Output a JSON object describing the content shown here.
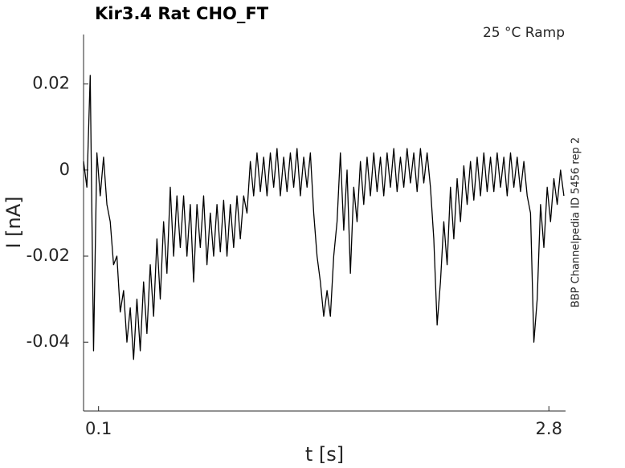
{
  "chart_data": {
    "type": "line",
    "title": "Kir3.4  Rat  CHO_FT",
    "annotation": "25 °C  Ramp",
    "side_note": "BBP Channelpedia ID 5456 rep 2",
    "xlabel": "t [s]",
    "ylabel": "I [nA]",
    "xlim": [
      0.01,
      2.9
    ],
    "ylim": [
      -0.056,
      0.0315
    ],
    "xticks": [
      0.1,
      2.8
    ],
    "yticks": [
      0.02,
      0,
      -0.02,
      -0.04
    ],
    "grid": false,
    "series": [
      {
        "color": "#000000",
        "x": [
          0.01,
          0.03,
          0.05,
          0.07,
          0.09,
          0.11,
          0.13,
          0.15,
          0.17,
          0.19,
          0.21,
          0.23,
          0.25,
          0.27,
          0.29,
          0.31,
          0.33,
          0.35,
          0.37,
          0.39,
          0.41,
          0.43,
          0.45,
          0.47,
          0.49,
          0.51,
          0.53,
          0.55,
          0.57,
          0.59,
          0.61,
          0.63,
          0.65,
          0.67,
          0.69,
          0.71,
          0.73,
          0.75,
          0.77,
          0.79,
          0.81,
          0.83,
          0.85,
          0.87,
          0.89,
          0.91,
          0.93,
          0.95,
          0.97,
          0.99,
          1.01,
          1.03,
          1.05,
          1.07,
          1.09,
          1.11,
          1.13,
          1.15,
          1.17,
          1.19,
          1.21,
          1.23,
          1.25,
          1.27,
          1.29,
          1.31,
          1.33,
          1.35,
          1.37,
          1.39,
          1.41,
          1.43,
          1.45,
          1.47,
          1.49,
          1.51,
          1.53,
          1.55,
          1.57,
          1.59,
          1.61,
          1.63,
          1.65,
          1.67,
          1.69,
          1.71,
          1.73,
          1.75,
          1.77,
          1.79,
          1.81,
          1.83,
          1.85,
          1.87,
          1.89,
          1.91,
          1.93,
          1.95,
          1.97,
          1.99,
          2.01,
          2.03,
          2.05,
          2.07,
          2.09,
          2.11,
          2.13,
          2.15,
          2.17,
          2.19,
          2.21,
          2.23,
          2.25,
          2.27,
          2.29,
          2.31,
          2.33,
          2.35,
          2.37,
          2.39,
          2.41,
          2.43,
          2.45,
          2.47,
          2.49,
          2.51,
          2.53,
          2.55,
          2.57,
          2.59,
          2.61,
          2.63,
          2.65,
          2.67,
          2.69,
          2.71,
          2.73,
          2.75,
          2.77,
          2.79,
          2.81,
          2.83,
          2.85,
          2.87,
          2.89
        ],
        "values": [
          0.002,
          -0.004,
          0.022,
          -0.042,
          0.004,
          -0.006,
          0.003,
          -0.008,
          -0.012,
          -0.022,
          -0.02,
          -0.033,
          -0.028,
          -0.04,
          -0.032,
          -0.044,
          -0.03,
          -0.042,
          -0.026,
          -0.038,
          -0.022,
          -0.034,
          -0.016,
          -0.03,
          -0.012,
          -0.024,
          -0.004,
          -0.02,
          -0.006,
          -0.018,
          -0.006,
          -0.02,
          -0.008,
          -0.026,
          -0.008,
          -0.018,
          -0.006,
          -0.022,
          -0.01,
          -0.02,
          -0.008,
          -0.019,
          -0.007,
          -0.02,
          -0.008,
          -0.018,
          -0.006,
          -0.016,
          -0.006,
          -0.01,
          0.002,
          -0.006,
          0.004,
          -0.005,
          0.003,
          -0.006,
          0.004,
          -0.004,
          0.005,
          -0.006,
          0.003,
          -0.005,
          0.004,
          -0.004,
          0.005,
          -0.006,
          0.003,
          -0.004,
          0.004,
          -0.01,
          -0.02,
          -0.026,
          -0.034,
          -0.028,
          -0.034,
          -0.02,
          -0.012,
          0.004,
          -0.014,
          0.0,
          -0.024,
          -0.004,
          -0.012,
          0.002,
          -0.008,
          0.003,
          -0.006,
          0.004,
          -0.005,
          0.003,
          -0.006,
          0.004,
          -0.004,
          0.005,
          -0.005,
          0.003,
          -0.004,
          0.005,
          -0.003,
          0.004,
          -0.005,
          0.005,
          -0.003,
          0.004,
          -0.004,
          -0.016,
          -0.036,
          -0.026,
          -0.012,
          -0.022,
          -0.004,
          -0.016,
          -0.002,
          -0.012,
          0.001,
          -0.008,
          0.002,
          -0.007,
          0.003,
          -0.006,
          0.004,
          -0.005,
          0.003,
          -0.005,
          0.004,
          -0.004,
          0.003,
          -0.006,
          0.004,
          -0.004,
          0.003,
          -0.005,
          0.002,
          -0.006,
          -0.01,
          -0.04,
          -0.03,
          -0.008,
          -0.018,
          -0.004,
          -0.012,
          -0.002,
          -0.008,
          0.0,
          -0.006
        ]
      }
    ]
  }
}
